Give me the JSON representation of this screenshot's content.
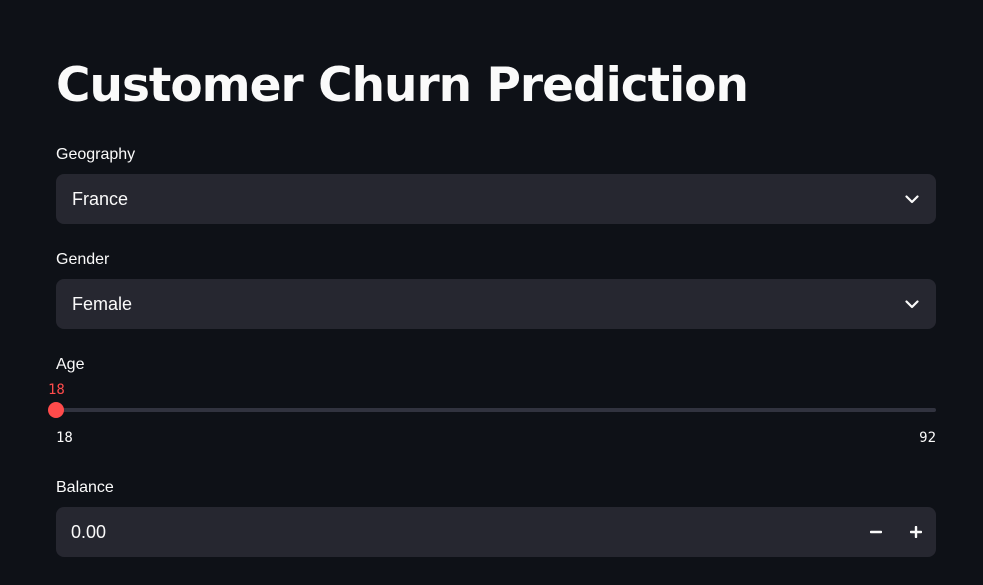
{
  "page": {
    "title": "Customer Churn Prediction"
  },
  "geography": {
    "label": "Geography",
    "selected": "France",
    "icon": "chevron-down-icon"
  },
  "gender": {
    "label": "Gender",
    "selected": "Female",
    "icon": "chevron-down-icon"
  },
  "age": {
    "label": "Age",
    "value": "18",
    "min": "18",
    "max": "92",
    "value_fraction": 0,
    "accent_color": "#ff4b4b"
  },
  "balance": {
    "label": "Balance",
    "value": "0.00",
    "decrement_icon": "minus-icon",
    "increment_icon": "plus-icon"
  },
  "colors": {
    "background": "#0e1117",
    "input_background": "#262730",
    "text": "#fafafa",
    "accent": "#ff4b4b"
  }
}
